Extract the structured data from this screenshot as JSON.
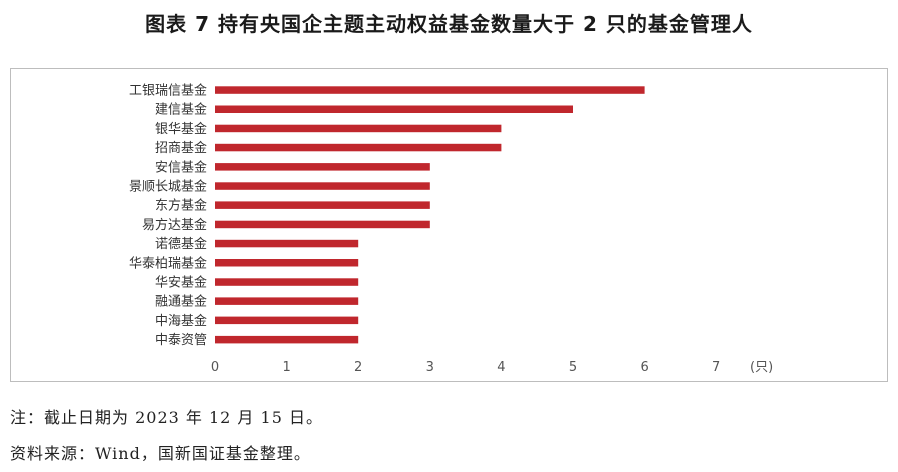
{
  "title": "图表 7 持有央国企主题主动权益基金数量大于 2 只的基金管理人",
  "chart_data": {
    "type": "bar",
    "orientation": "horizontal",
    "categories": [
      "工银瑞信基金",
      "建信基金",
      "银华基金",
      "招商基金",
      "安信基金",
      "景顺长城基金",
      "东方基金",
      "易方达基金",
      "诺德基金",
      "华泰柏瑞基金",
      "华安基金",
      "融通基金",
      "中海基金",
      "中泰资管"
    ],
    "values": [
      6,
      5,
      4,
      4,
      3,
      3,
      3,
      3,
      2,
      2,
      2,
      2,
      2,
      2
    ],
    "xlim": [
      0,
      7
    ],
    "xticks": [
      0,
      1,
      2,
      3,
      4,
      5,
      6,
      7
    ],
    "xlabel": "(只)",
    "bar_color": "#c0272d",
    "grid": false
  },
  "notes": {
    "note": "注：截止日期为 2023 年 12 月 15 日。",
    "source": "资料来源：Wind，国新国证基金整理。"
  }
}
